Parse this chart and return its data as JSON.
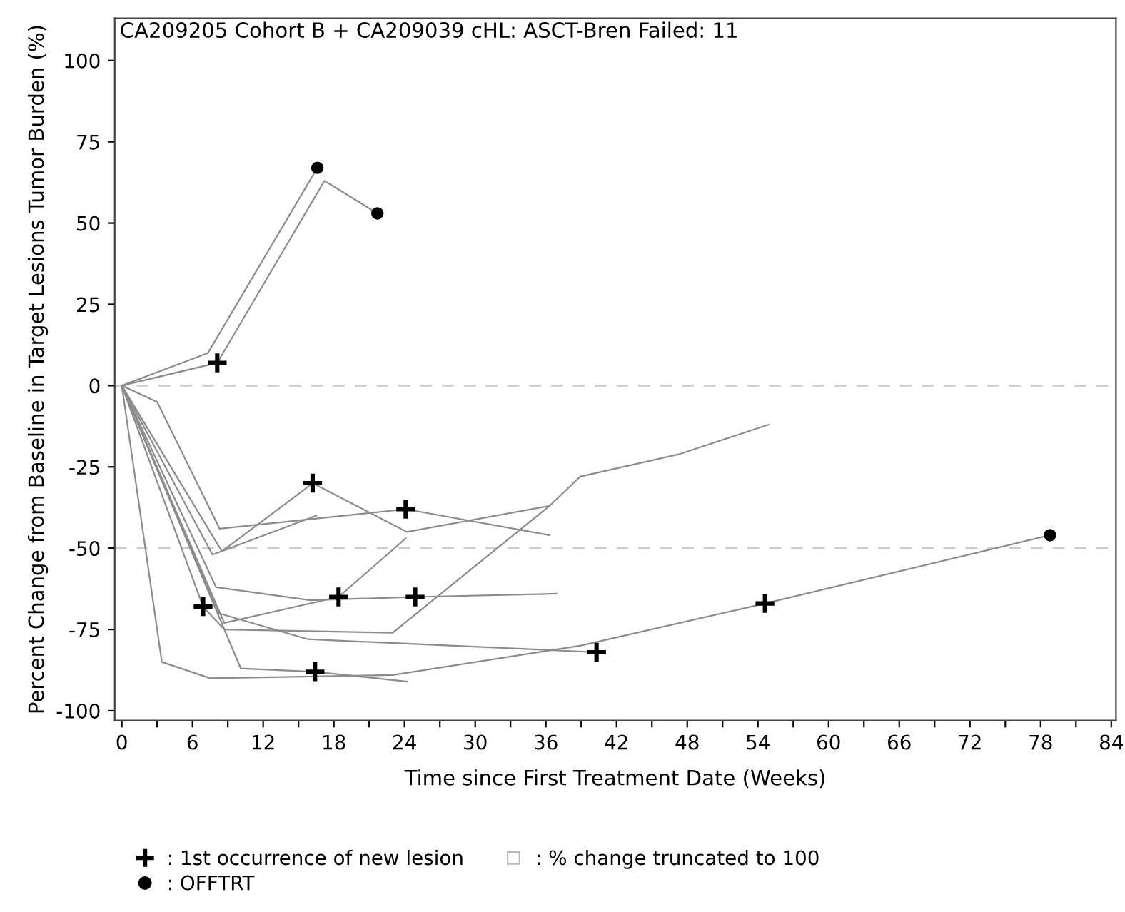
{
  "chart_data": {
    "type": "line",
    "title": "CA209205 Cohort B + CA209039 cHL: ASCT-Bren Failed: 11",
    "xlabel": "Time since First Treatment Date (Weeks)",
    "ylabel": "Percent Change from Baseline in Target Lesions Tumor Burden (%)",
    "xlim": [
      -0.6,
      84.4
    ],
    "ylim": [
      -103,
      113
    ],
    "xticks": [
      0,
      {
        "value": 3,
        "label": null
      },
      6,
      {
        "value": 9,
        "label": null
      },
      12,
      {
        "value": 15,
        "label": null
      },
      18,
      {
        "value": 21,
        "label": null
      },
      24,
      {
        "value": 27,
        "label": null
      },
      30,
      {
        "value": 33,
        "label": null
      },
      36,
      {
        "value": 39,
        "label": null
      },
      42,
      {
        "value": 45,
        "label": null
      },
      48,
      {
        "value": 51,
        "label": null
      },
      54,
      {
        "value": 57,
        "label": null
      },
      60,
      {
        "value": 63,
        "label": null
      },
      66,
      {
        "value": 69,
        "label": null
      },
      72,
      {
        "value": 75,
        "label": null
      },
      78,
      {
        "value": 81,
        "label": null
      },
      84
    ],
    "yticks": [
      -100,
      -75,
      -50,
      -25,
      0,
      25,
      50,
      75,
      100
    ],
    "grid": false,
    "legend": "bottom",
    "ref_lines": [
      {
        "axis": "y",
        "value": 0,
        "color": "#cccccc",
        "line_style": "dashed"
      },
      {
        "axis": "y",
        "value": -50,
        "color": "#cccccc",
        "line_style": "dashed"
      }
    ],
    "series": [
      {
        "color": "#8c8c8c",
        "x": [
          0,
          8.1,
          17.2,
          21.7
        ],
        "values": [
          0,
          7,
          63,
          53
        ]
      },
      {
        "color": "#8c8c8c",
        "x": [
          0,
          7.3,
          16.6
        ],
        "values": [
          0,
          10,
          67
        ]
      },
      {
        "color": "#8c8c8c",
        "x": [
          0,
          6.9,
          8.7,
          23,
          36.3,
          38.9,
          47.4,
          54.9
        ],
        "values": [
          0,
          -68,
          -75,
          -76,
          -37,
          -28,
          -21,
          -12
        ]
      },
      {
        "color": "#8c8c8c",
        "x": [
          0,
          3,
          8.3,
          24.1,
          36.3
        ],
        "values": [
          0,
          -5,
          -44,
          -38,
          -46
        ]
      },
      {
        "color": "#8c8c8c",
        "x": [
          0,
          8.5,
          16.2,
          24.2,
          36.3
        ],
        "values": [
          0,
          -51,
          -30,
          -45,
          -37
        ]
      },
      {
        "color": "#8c8c8c",
        "x": [
          0,
          7.7,
          16.5
        ],
        "values": [
          0,
          -52,
          -40
        ]
      },
      {
        "color": "#8c8c8c",
        "x": [
          0,
          8.7,
          18.4,
          24.1
        ],
        "values": [
          0,
          -73,
          -65,
          -47
        ]
      },
      {
        "color": "#8c8c8c",
        "x": [
          0,
          3.4,
          7.5,
          23,
          38.9,
          54.6,
          78.8
        ],
        "values": [
          0,
          -85,
          -90,
          -89,
          -80,
          -67,
          -46
        ]
      },
      {
        "color": "#8c8c8c",
        "x": [
          0,
          10.1,
          16.4,
          24.2
        ],
        "values": [
          0,
          -87,
          -88,
          -91
        ]
      },
      {
        "color": "#8c8c8c",
        "x": [
          0,
          8,
          16,
          24.9,
          36.9
        ],
        "values": [
          0,
          -62,
          -66,
          -65,
          -64
        ]
      },
      {
        "color": "#8c8c8c",
        "x": [
          0,
          8.2,
          15.8,
          40.3
        ],
        "values": [
          0,
          -70,
          -78,
          -82
        ]
      },
      {
        "type": "scatter",
        "name": ": 1st occurrence of new lesion",
        "color": "#000000",
        "marker": "cross",
        "x": [
          8.1,
          6.9,
          24.1,
          16.2,
          18.4,
          54.6,
          16.4,
          24.9,
          40.3
        ],
        "values": [
          7,
          -68,
          -38,
          -30,
          -65,
          -67,
          -88,
          -65,
          -82
        ]
      },
      {
        "type": "scatter",
        "name": ": OFFTRT",
        "color": "#000000",
        "marker": "circle",
        "x": [
          16.6,
          21.7,
          78.8
        ],
        "values": [
          67,
          53,
          -46
        ]
      },
      {
        "type": "scatter",
        "name": ": % change truncated to 100",
        "color": "#bbbbbb",
        "marker": "square"
      }
    ]
  }
}
